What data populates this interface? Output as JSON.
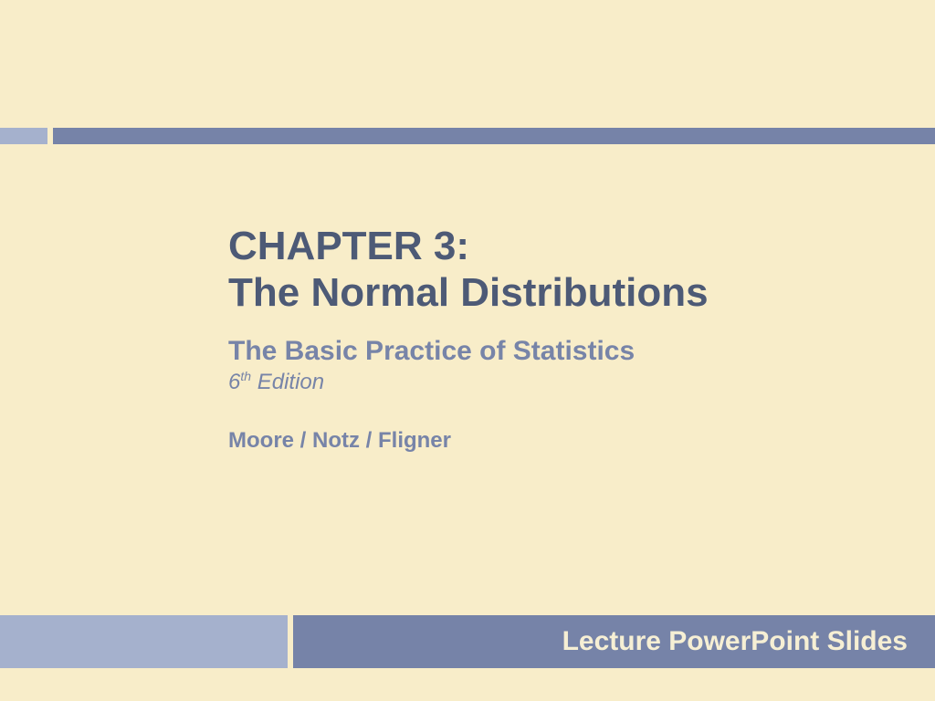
{
  "colors": {
    "background": "#f8edc9",
    "bar_light": "#a5b1cd",
    "bar_dark": "#7683a8",
    "title_text": "#4d5a76",
    "subtitle_text": "#7784a8",
    "footer_text": "#f6efd4"
  },
  "content": {
    "chapter": "CHAPTER 3:",
    "title": "The Normal Distributions",
    "subtitle": "The Basic Practice of Statistics",
    "edition_ordinal": "6",
    "edition_suffix": "th",
    "edition_word": " Edition",
    "authors": "Moore / Notz / Fligner"
  },
  "footer": {
    "label": "Lecture PowerPoint Slides"
  }
}
